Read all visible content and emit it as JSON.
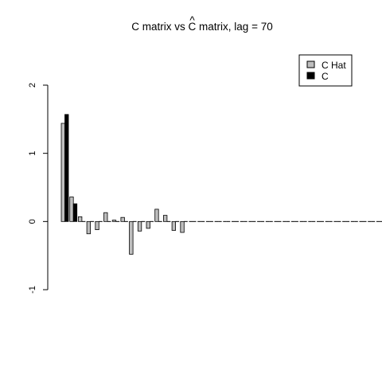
{
  "chart_data": {
    "type": "bar",
    "title": {
      "prefix": "C matrix vs ",
      "hat_letter": "C",
      "hat_mark": "^",
      "suffix": " matrix, lag = 70"
    },
    "xlabel": "",
    "ylabel": "",
    "ylim": [
      -1,
      2
    ],
    "yticks": [
      "-1",
      "0",
      "1",
      "2"
    ],
    "grid": false,
    "legend_position": "top-right",
    "legend": [
      "C Hat",
      "C"
    ],
    "series": [
      {
        "name": "C Hat",
        "color": "#bebebe",
        "values": [
          1.44,
          0.36,
          0.07,
          -0.18,
          -0.12,
          0.13,
          0.02,
          0.06,
          -0.48,
          -0.14,
          -0.1,
          0.18,
          0.09,
          -0.13,
          -0.16,
          0.0,
          0.0,
          0.0,
          0.0,
          0.0,
          0.0,
          0.0,
          0.0,
          0.0,
          0.0,
          0.0,
          0.0,
          0.0,
          0.0,
          0.0,
          0.0,
          0.0,
          0.0,
          0.0,
          0.0,
          0.0,
          0.0,
          0.0,
          0.0,
          0.0
        ]
      },
      {
        "name": "C",
        "color": "#000000",
        "values": [
          1.57,
          0.26,
          0.0,
          0.0,
          0.0,
          0.0,
          0.0,
          0.0,
          0.0,
          0.0,
          0.0,
          0.0,
          0.0,
          0.0,
          0.0,
          0.0,
          0.0,
          0.0,
          0.0,
          0.0,
          0.0,
          0.0,
          0.0,
          0.0,
          0.0,
          0.0,
          0.0,
          0.0,
          0.0,
          0.0,
          0.0,
          0.0,
          0.0,
          0.0,
          0.0,
          0.0,
          0.0,
          0.0,
          0.0,
          0.0
        ]
      }
    ]
  }
}
